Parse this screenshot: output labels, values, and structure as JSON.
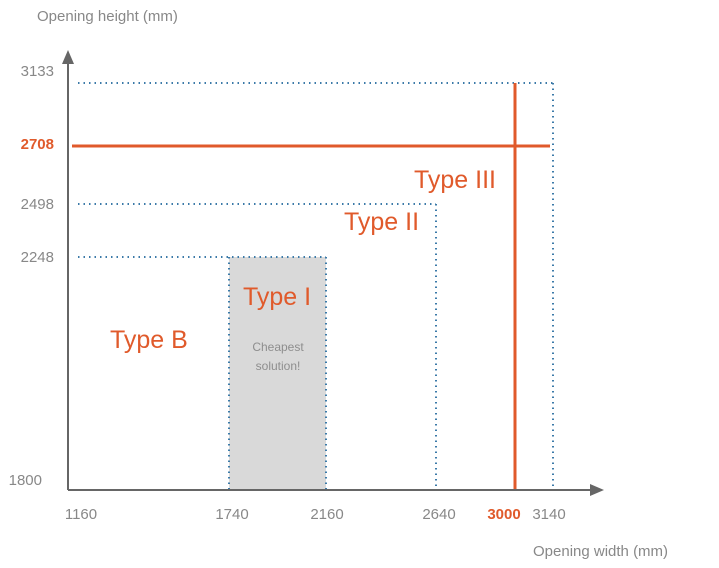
{
  "colors": {
    "accent": "#e05a2b",
    "dotted": "#3b7aa8",
    "axis": "#666666",
    "shade": "#d9d9d9",
    "tick_text": "#888888"
  },
  "axes": {
    "y_label": "Opening height (mm)",
    "x_label": "Opening width (mm)",
    "y_ticks": [
      "3133",
      "2708",
      "2498",
      "2248",
      "1800"
    ],
    "x_ticks": [
      "1160",
      "1740",
      "2160",
      "2640",
      "3000",
      "3140"
    ],
    "highlighted_ticks": [
      "2708",
      "3000"
    ]
  },
  "regions": {
    "type_b": "Type B",
    "type_i": "Type I",
    "type_ii": "Type II",
    "type_iii": "Type III",
    "type_i_note": "Cheapest solution!"
  }
}
